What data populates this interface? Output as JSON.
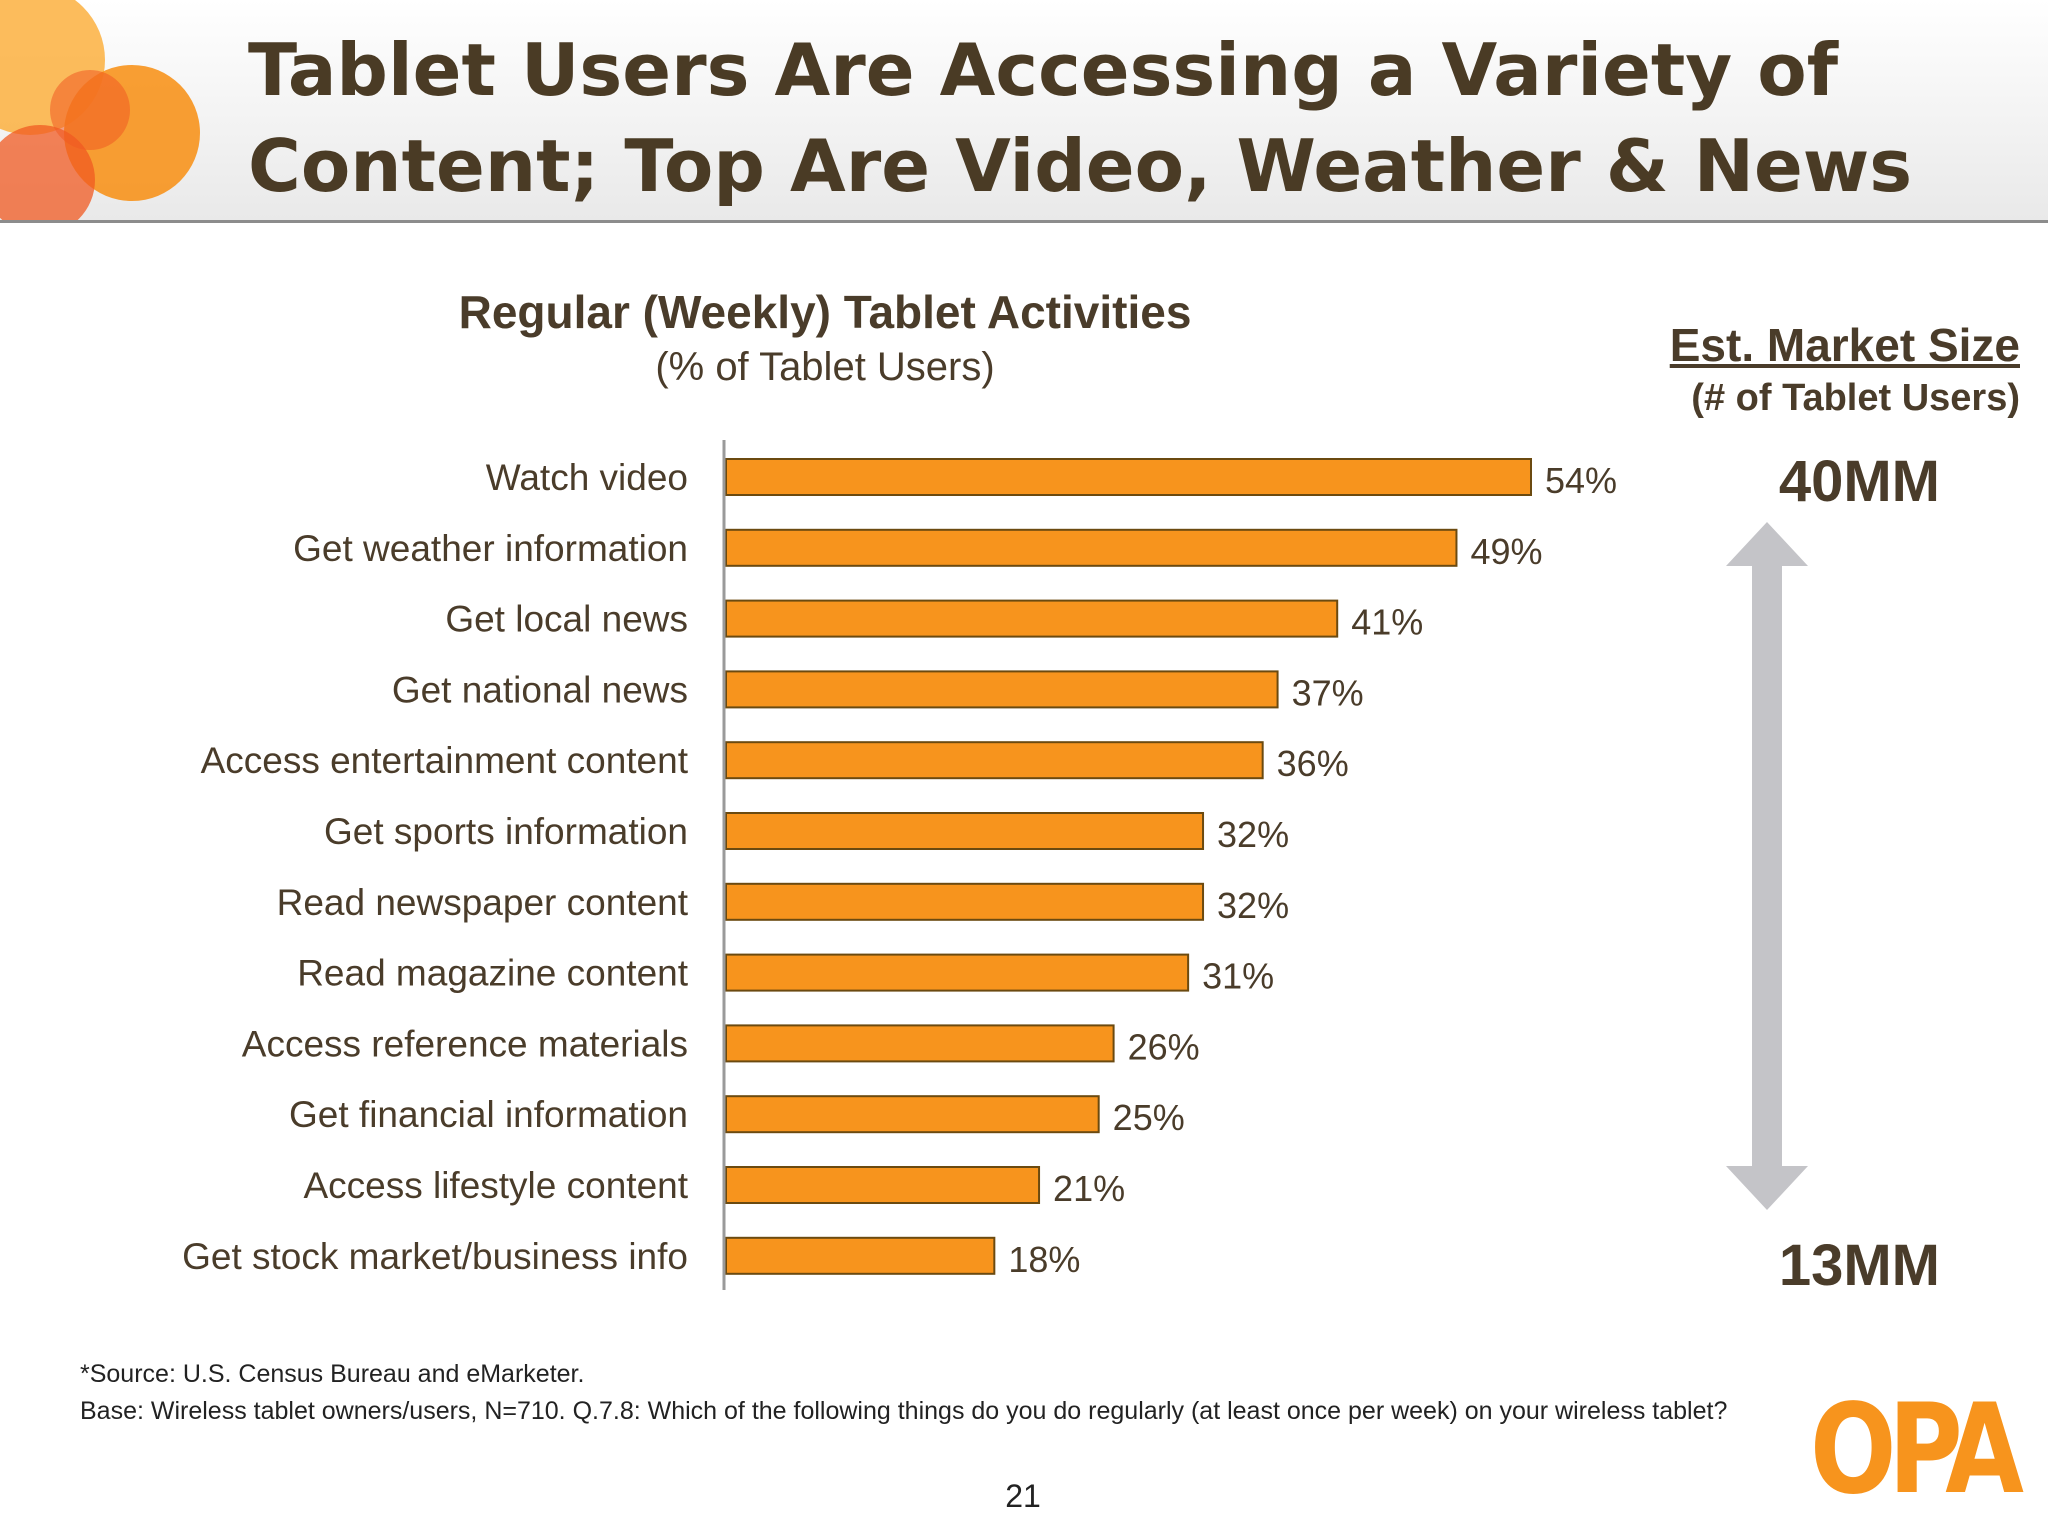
{
  "slide": {
    "title_line1": "Tablet Users Are Accessing a Variety of",
    "title_line2": "Content; Top Are Video, Weather & News"
  },
  "chart_data": {
    "type": "bar",
    "orientation": "horizontal",
    "title": "Regular (Weekly) Tablet Activities",
    "subtitle": "(% of Tablet Users)",
    "categories": [
      "Watch video",
      "Get weather information",
      "Get local news",
      "Get national news",
      "Access entertainment content",
      "Get sports information",
      "Read newspaper content",
      "Read magazine content",
      "Access reference materials",
      "Get financial information",
      "Access lifestyle content",
      "Get stock market/business info"
    ],
    "values": [
      54,
      49,
      41,
      37,
      36,
      32,
      32,
      31,
      26,
      25,
      21,
      18
    ],
    "value_labels": [
      "54%",
      "49%",
      "41%",
      "37%",
      "36%",
      "32%",
      "32%",
      "31%",
      "26%",
      "25%",
      "21%",
      "18%"
    ],
    "xlim": [
      0,
      54
    ],
    "grid": false,
    "legend": "none",
    "bar_color": "#f7941d",
    "bar_edge_color": "#6b4a10"
  },
  "market": {
    "title": "Est. Market Size",
    "subtitle": "(# of Tablet Users)",
    "top_value": "40MM",
    "bottom_value": "13MM",
    "arrow_color": "#c4c4c8"
  },
  "footnotes": {
    "source": "*Source: U.S. Census Bureau and eMarketer.",
    "base": "Base:   Wireless tablet owners/users, N=710.  Q.7.8:  Which of the following things do you do regularly (at least once per week) on your wireless tablet?"
  },
  "page_number": "21",
  "logo": {
    "text": "OPA",
    "color": "#f7941d"
  },
  "decor": {
    "circle_colors": [
      "#f7941d",
      "#f05a22",
      "#fbb040"
    ]
  }
}
